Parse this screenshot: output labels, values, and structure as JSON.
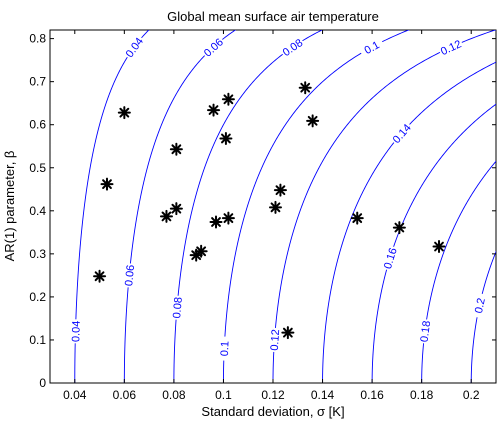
{
  "chart_data": {
    "type": "scatter",
    "title": "Global mean surface air temperature",
    "xlabel": "Standard deviation, σ  [K]",
    "ylabel": "AR(1) parameter, β",
    "xlim": [
      0.03,
      0.21
    ],
    "ylim": [
      0,
      0.82
    ],
    "x_ticks": [
      {
        "value": 0.04,
        "label": "0.04"
      },
      {
        "value": 0.06,
        "label": "0.06"
      },
      {
        "value": 0.08,
        "label": "0.08"
      },
      {
        "value": 0.1,
        "label": "0.1"
      },
      {
        "value": 0.12,
        "label": "0.12"
      },
      {
        "value": 0.14,
        "label": "0.14"
      },
      {
        "value": 0.16,
        "label": "0.16"
      },
      {
        "value": 0.18,
        "label": "0.18"
      },
      {
        "value": 0.2,
        "label": "0.2"
      }
    ],
    "y_ticks": [
      {
        "value": 0,
        "label": "0"
      },
      {
        "value": 0.1,
        "label": "0.1"
      },
      {
        "value": 0.2,
        "label": "0.2"
      },
      {
        "value": 0.3,
        "label": "0.3"
      },
      {
        "value": 0.4,
        "label": "0.4"
      },
      {
        "value": 0.5,
        "label": "0.5"
      },
      {
        "value": 0.6,
        "label": "0.6"
      },
      {
        "value": 0.7,
        "label": "0.7"
      },
      {
        "value": 0.8,
        "label": "0.8"
      }
    ],
    "contours": {
      "color": "#0000ff",
      "relation": "level = sigma * sqrt(1 - beta^2)",
      "levels": [
        {
          "value": 0.04,
          "label": "0.04",
          "label_beta": 0.12
        },
        {
          "value": 0.06,
          "label": "0.06",
          "label_beta": 0.25
        },
        {
          "value": 0.08,
          "label": "0.08",
          "label_beta": 0.175
        },
        {
          "value": 0.1,
          "label": "0.1",
          "label_beta": 0.08
        },
        {
          "value": 0.12,
          "label": "0.12",
          "label_beta": 0.1
        },
        {
          "value": 0.14,
          "label": "0.14",
          "label_beta": 0.58
        },
        {
          "value": 0.16,
          "label": "0.16",
          "label_beta": 0.29
        },
        {
          "value": 0.18,
          "label": "0.18",
          "label_beta": 0.12
        },
        {
          "value": 0.2,
          "label": "0.2",
          "label_beta": 0.18
        }
      ],
      "edge_labels": [
        {
          "value": 0.04,
          "label": "0.04"
        },
        {
          "value": 0.06,
          "label": "0.06"
        },
        {
          "value": 0.08,
          "label": "0.08"
        },
        {
          "value": 0.1,
          "label": "0.1"
        },
        {
          "value": 0.12,
          "label": "0.12"
        }
      ]
    },
    "points": [
      {
        "x": 0.05,
        "y": 0.248
      },
      {
        "x": 0.053,
        "y": 0.462
      },
      {
        "x": 0.06,
        "y": 0.628
      },
      {
        "x": 0.077,
        "y": 0.387
      },
      {
        "x": 0.081,
        "y": 0.405
      },
      {
        "x": 0.081,
        "y": 0.543
      },
      {
        "x": 0.089,
        "y": 0.297
      },
      {
        "x": 0.091,
        "y": 0.306
      },
      {
        "x": 0.096,
        "y": 0.634
      },
      {
        "x": 0.097,
        "y": 0.374
      },
      {
        "x": 0.101,
        "y": 0.568
      },
      {
        "x": 0.102,
        "y": 0.659
      },
      {
        "x": 0.102,
        "y": 0.383
      },
      {
        "x": 0.121,
        "y": 0.408
      },
      {
        "x": 0.123,
        "y": 0.448
      },
      {
        "x": 0.126,
        "y": 0.117
      },
      {
        "x": 0.133,
        "y": 0.686
      },
      {
        "x": 0.136,
        "y": 0.609
      },
      {
        "x": 0.154,
        "y": 0.383
      },
      {
        "x": 0.171,
        "y": 0.361
      },
      {
        "x": 0.187,
        "y": 0.317
      }
    ],
    "marker": "asterisk",
    "marker_color": "#000000",
    "grid": false
  }
}
